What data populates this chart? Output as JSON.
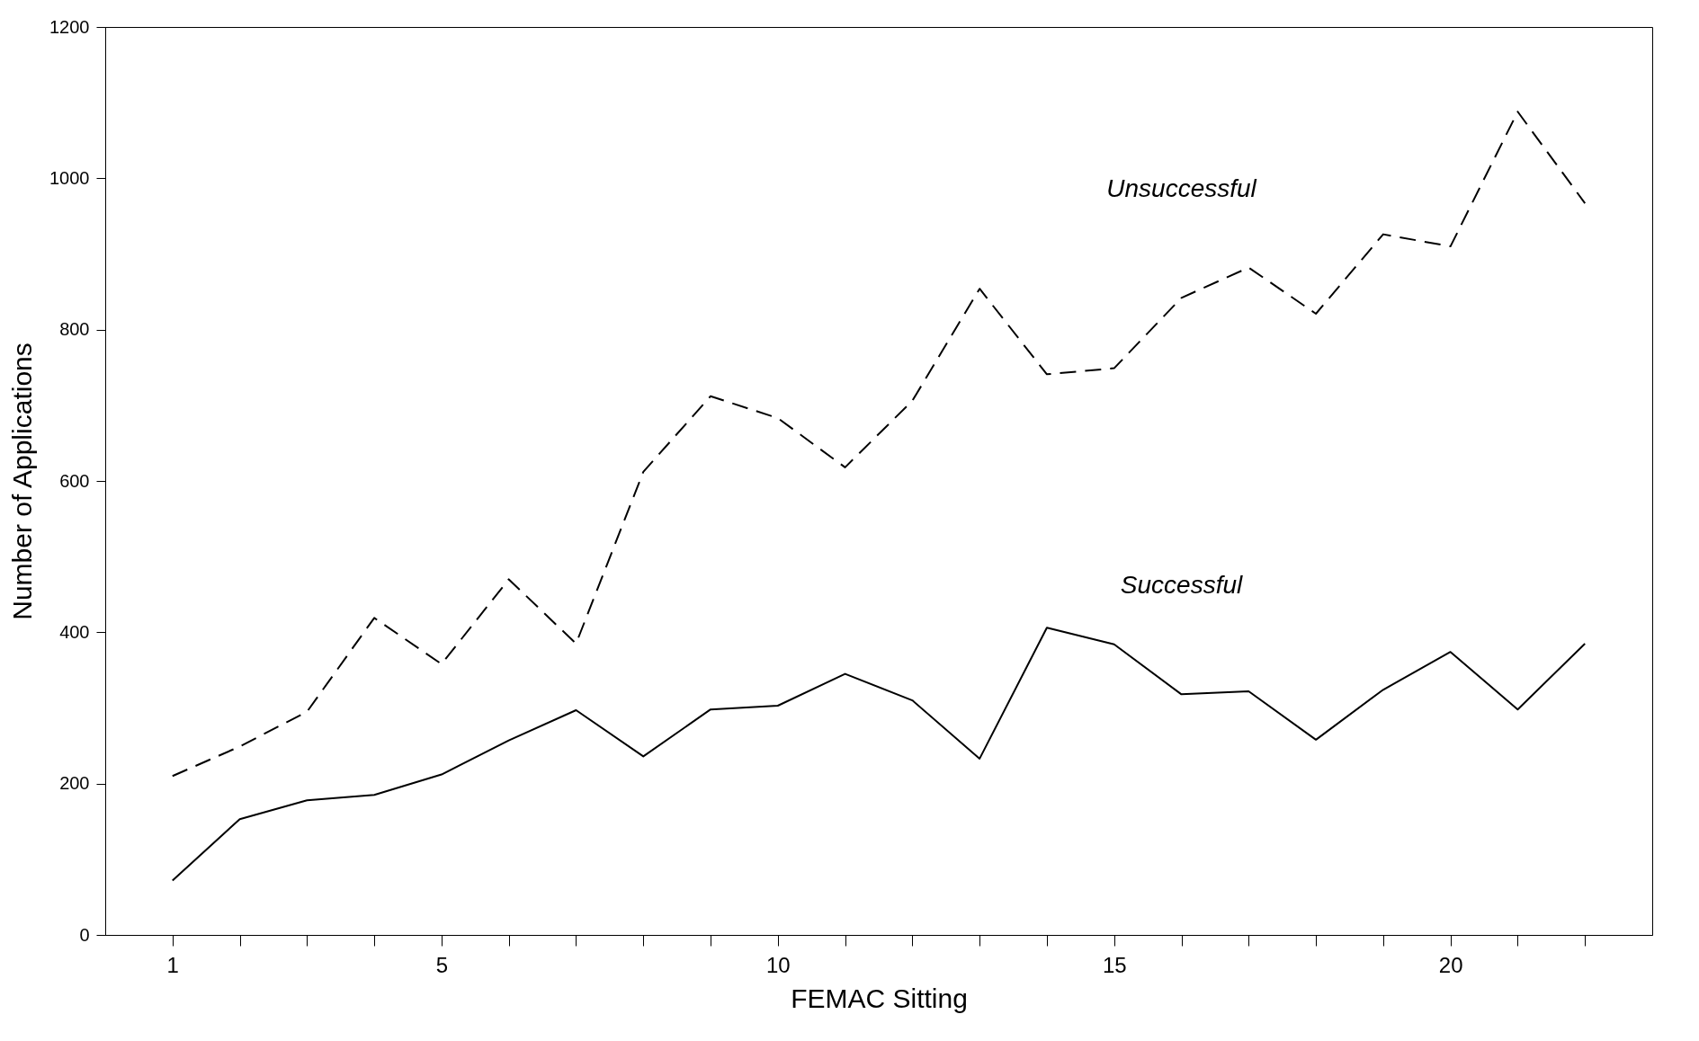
{
  "chart_data": {
    "type": "line",
    "xlabel": "FEMAC Sitting",
    "ylabel": "Number of Applications",
    "x": [
      1,
      2,
      3,
      4,
      5,
      6,
      7,
      8,
      9,
      10,
      11,
      12,
      13,
      14,
      15,
      16,
      17,
      18,
      19,
      20,
      21,
      22
    ],
    "series": [
      {
        "name": "Unsuccessful",
        "color": "#000000",
        "line_style": "dashed",
        "values": [
          210,
          249,
          295,
          419,
          358,
          470,
          385,
          612,
          712,
          683,
          618,
          706,
          854,
          741,
          749,
          842,
          882,
          821,
          926,
          910,
          1088,
          967
        ]
      },
      {
        "name": "Successful",
        "color": "#000000",
        "line_style": "solid",
        "values": [
          72,
          153,
          178,
          185,
          212,
          257,
          297,
          236,
          298,
          303,
          345,
          310,
          233,
          406,
          384,
          318,
          322,
          258,
          324,
          374,
          298,
          385
        ]
      }
    ],
    "xlim": [
      0,
      23
    ],
    "xticks": [
      1,
      {
        "value": 2,
        "label": null
      },
      {
        "value": 3,
        "label": null
      },
      {
        "value": 4,
        "label": null
      },
      5,
      {
        "value": 6,
        "label": null
      },
      {
        "value": 7,
        "label": null
      },
      {
        "value": 8,
        "label": null
      },
      {
        "value": 9,
        "label": null
      },
      10,
      {
        "value": 11,
        "label": null
      },
      {
        "value": 12,
        "label": null
      },
      {
        "value": 13,
        "label": null
      },
      {
        "value": 14,
        "label": null
      },
      15,
      {
        "value": 16,
        "label": null
      },
      {
        "value": 17,
        "label": null
      },
      {
        "value": 18,
        "label": null
      },
      {
        "value": 19,
        "label": null
      },
      20,
      {
        "value": 21,
        "label": null
      },
      {
        "value": 22,
        "label": null
      }
    ],
    "ylim": [
      0,
      1200
    ],
    "yticks": [
      0,
      200,
      400,
      600,
      800,
      1000,
      1200
    ],
    "grid": false,
    "legend": false,
    "marker": "none"
  }
}
